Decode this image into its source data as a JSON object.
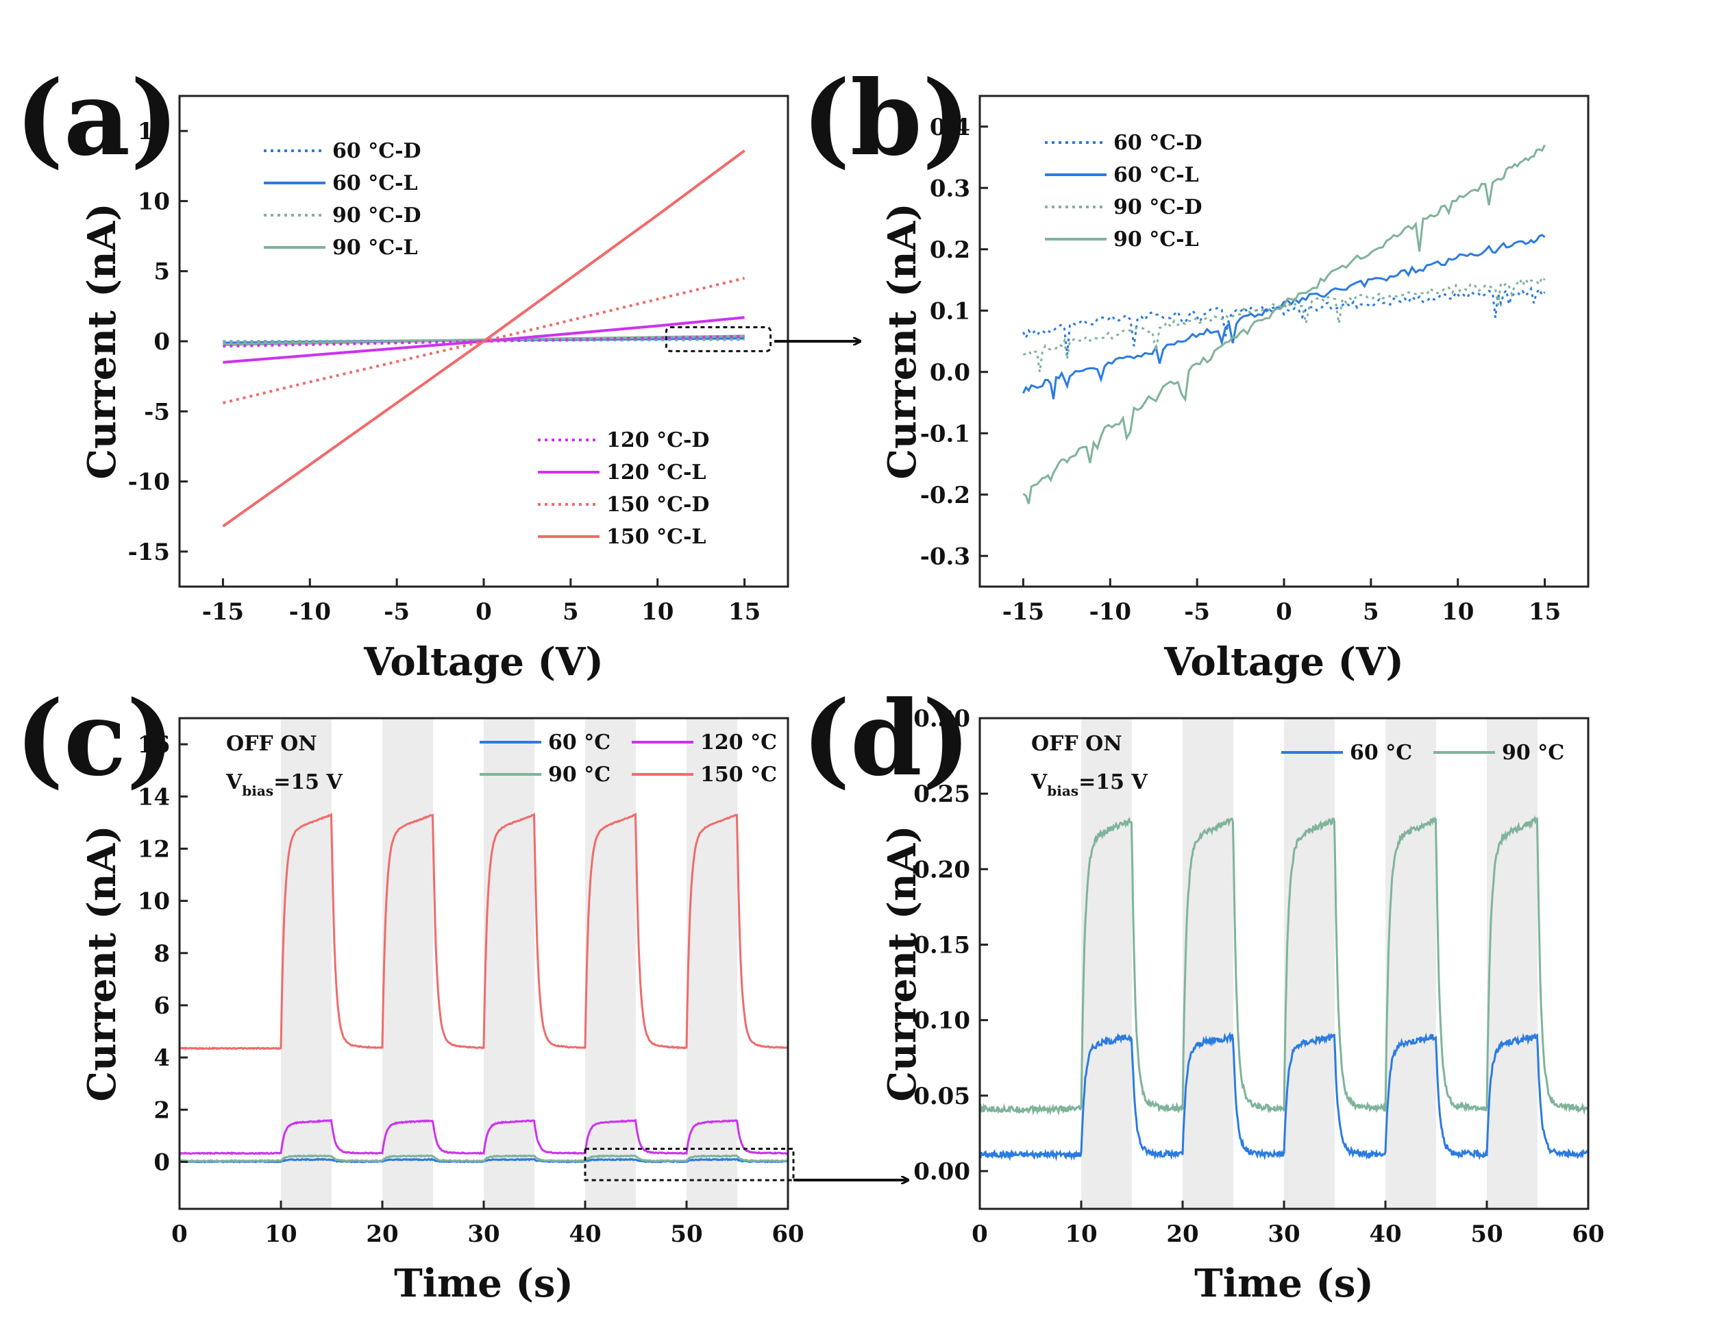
{
  "colors": {
    "60C": "#2b7be0",
    "90C": "#7fb39a",
    "120C": "#cc33ee",
    "150C": "#ef6b6b",
    "on_shade": "#ececec",
    "axis": "#222222"
  },
  "chart_data": [
    {
      "id": "a",
      "panel_label": "(a)",
      "type": "line",
      "xlabel": "Voltage (V)",
      "ylabel": "Current (nA)",
      "xlim": [
        -17.5,
        17.5
      ],
      "ylim": [
        -17.5,
        17.5
      ],
      "xticks": [
        -15,
        -10,
        -5,
        0,
        5,
        10,
        15
      ],
      "yticks": [
        -15,
        -10,
        -5,
        0,
        5,
        10,
        15
      ],
      "legend_groups": [
        {
          "position": "top-left",
          "entries": [
            "60 °C-D",
            "60 °C-L",
            "90 °C-D",
            "90 °C-L"
          ]
        },
        {
          "position": "bottom-right",
          "entries": [
            "120 °C-D",
            "120 °C-L",
            "150 °C-D",
            "150 °C-L"
          ]
        }
      ],
      "series": [
        {
          "name": "60 °C-D",
          "color_key": "60C",
          "style": "dotted",
          "x": [
            -15,
            0,
            15
          ],
          "y": [
            -0.02,
            0.05,
            0.13
          ]
        },
        {
          "name": "60 °C-L",
          "color_key": "60C",
          "style": "solid",
          "x": [
            -15,
            0,
            15
          ],
          "y": [
            -0.12,
            0.08,
            0.22
          ]
        },
        {
          "name": "90 °C-D",
          "color_key": "90C",
          "style": "dotted",
          "x": [
            -15,
            0,
            15
          ],
          "y": [
            -0.05,
            0.06,
            0.15
          ]
        },
        {
          "name": "90 °C-L",
          "color_key": "90C",
          "style": "solid",
          "x": [
            -15,
            0,
            15
          ],
          "y": [
            -0.25,
            0.1,
            0.37
          ]
        },
        {
          "name": "120 °C-D",
          "color_key": "120C",
          "style": "dotted",
          "x": [
            -15,
            0,
            15
          ],
          "y": [
            -0.35,
            0,
            0.35
          ]
        },
        {
          "name": "120 °C-L",
          "color_key": "120C",
          "style": "solid",
          "x": [
            -15,
            -10,
            -5,
            0,
            5,
            10,
            15
          ],
          "y": [
            -1.5,
            -1.0,
            -0.5,
            0,
            0.55,
            1.1,
            1.7
          ]
        },
        {
          "name": "150 °C-D",
          "color_key": "150C",
          "style": "dotted",
          "x": [
            -15,
            -10,
            -5,
            0,
            5,
            10,
            15
          ],
          "y": [
            -4.4,
            -2.9,
            -1.45,
            0,
            1.5,
            3.0,
            4.5
          ]
        },
        {
          "name": "150 °C-L",
          "color_key": "150C",
          "style": "solid",
          "x": [
            -15,
            -10,
            -5,
            0,
            5,
            10,
            15
          ],
          "y": [
            -13.2,
            -8.8,
            -4.4,
            0,
            4.5,
            9.0,
            13.6
          ]
        }
      ],
      "zoom_region": {
        "x": [
          10.5,
          16.5
        ],
        "y": [
          -0.7,
          1.0
        ]
      }
    },
    {
      "id": "b",
      "panel_label": "(b)",
      "type": "line",
      "xlabel": "Voltage (V)",
      "ylabel": "Current (nA)",
      "xlim": [
        -17.5,
        17.5
      ],
      "ylim": [
        -0.35,
        0.45
      ],
      "xticks": [
        -15,
        -10,
        -5,
        0,
        5,
        10,
        15
      ],
      "yticks": [
        -0.3,
        -0.2,
        -0.1,
        0.0,
        0.1,
        0.2,
        0.3,
        0.4
      ],
      "ytick_labels": [
        "-0.3",
        "-0.2",
        "-0.1",
        "0.0",
        "0.1",
        "0.2",
        "0.3",
        "0.4"
      ],
      "legend_groups": [
        {
          "position": "top-left",
          "entries": [
            "60 °C-D",
            "60 °C-L",
            "90 °C-D",
            "90 °C-L"
          ]
        }
      ],
      "series": [
        {
          "name": "60 °C-D",
          "color_key": "60C",
          "style": "dotted",
          "x": [
            -15,
            -12,
            -8,
            -4,
            0,
            4,
            8,
            12,
            15
          ],
          "y": [
            0.06,
            0.08,
            0.09,
            0.1,
            0.1,
            0.11,
            0.12,
            0.13,
            0.13
          ]
        },
        {
          "name": "60 °C-L",
          "color_key": "60C",
          "style": "solid",
          "x": [
            -15,
            -12,
            -8,
            -4,
            0,
            4,
            8,
            12,
            15
          ],
          "y": [
            -0.03,
            0.0,
            0.03,
            0.07,
            0.11,
            0.14,
            0.17,
            0.2,
            0.22
          ]
        },
        {
          "name": "90 °C-D",
          "color_key": "90C",
          "style": "dotted",
          "x": [
            -15,
            -12,
            -8,
            -4,
            0,
            4,
            8,
            12,
            15
          ],
          "y": [
            0.03,
            0.05,
            0.07,
            0.09,
            0.11,
            0.12,
            0.13,
            0.14,
            0.15
          ]
        },
        {
          "name": "90 °C-L",
          "color_key": "90C",
          "style": "solid",
          "x": [
            -15,
            -12,
            -8,
            -4,
            0,
            4,
            8,
            12,
            15
          ],
          "y": [
            -0.2,
            -0.13,
            -0.05,
            0.03,
            0.11,
            0.18,
            0.25,
            0.31,
            0.37
          ]
        }
      ]
    },
    {
      "id": "c",
      "panel_label": "(c)",
      "type": "line",
      "xlabel": "Time (s)",
      "ylabel": "Current (nA)",
      "xlim": [
        0,
        60
      ],
      "ylim": [
        -1.8,
        17
      ],
      "xticks": [
        0,
        10,
        20,
        30,
        40,
        50,
        60
      ],
      "yticks": [
        0,
        2,
        4,
        6,
        8,
        10,
        12,
        14,
        16
      ],
      "on_intervals": [
        [
          10,
          15
        ],
        [
          20,
          25
        ],
        [
          30,
          35
        ],
        [
          40,
          45
        ],
        [
          50,
          55
        ]
      ],
      "annotation": {
        "line1": "OFF  ON",
        "vbias_prefix": "V",
        "vbias_sub": "bias",
        "vbias_suffix": "=15 V"
      },
      "legend_groups": [
        {
          "position": "top-right",
          "entries": [
            "60 °C",
            "90 °C",
            "120 °C",
            "150 °C"
          ]
        }
      ],
      "series": [
        {
          "name": "60 °C",
          "color_key": "60C",
          "style": "solid",
          "off_level": 0.01,
          "on_level": 0.09
        },
        {
          "name": "90 °C",
          "color_key": "90C",
          "style": "solid",
          "off_level": 0.04,
          "on_level": 0.23
        },
        {
          "name": "120 °C",
          "color_key": "120C",
          "style": "solid",
          "off_level": 0.33,
          "on_level": 1.58
        },
        {
          "name": "150 °C",
          "color_key": "150C",
          "style": "solid",
          "off_level": 4.35,
          "on_level": 13.3
        }
      ],
      "zoom_region": {
        "x": [
          40,
          60
        ],
        "y": [
          -0.7,
          0.5
        ]
      }
    },
    {
      "id": "d",
      "panel_label": "(d)",
      "type": "line",
      "xlabel": "Time (s)",
      "ylabel": "Current (nA)",
      "xlim": [
        0,
        60
      ],
      "ylim": [
        -0.025,
        0.3
      ],
      "xticks": [
        0,
        10,
        20,
        30,
        40,
        50,
        60
      ],
      "yticks": [
        0.0,
        0.05,
        0.1,
        0.15,
        0.2,
        0.25,
        0.3
      ],
      "ytick_labels": [
        "0.00",
        "0.05",
        "0.10",
        "0.15",
        "0.20",
        "0.25",
        "0.30"
      ],
      "on_intervals": [
        [
          10,
          15
        ],
        [
          20,
          25
        ],
        [
          30,
          35
        ],
        [
          40,
          45
        ],
        [
          50,
          55
        ]
      ],
      "annotation": {
        "line1": "OFF  ON",
        "vbias_prefix": "V",
        "vbias_sub": "bias",
        "vbias_suffix": "=15 V"
      },
      "legend_groups": [
        {
          "position": "top-right",
          "entries": [
            "60 °C",
            "90 °C"
          ]
        }
      ],
      "series": [
        {
          "name": "60 °C",
          "color_key": "60C",
          "style": "solid",
          "off_level": 0.011,
          "on_level": 0.089
        },
        {
          "name": "90 °C",
          "color_key": "90C",
          "style": "solid",
          "off_level": 0.041,
          "on_level": 0.233
        }
      ]
    }
  ]
}
